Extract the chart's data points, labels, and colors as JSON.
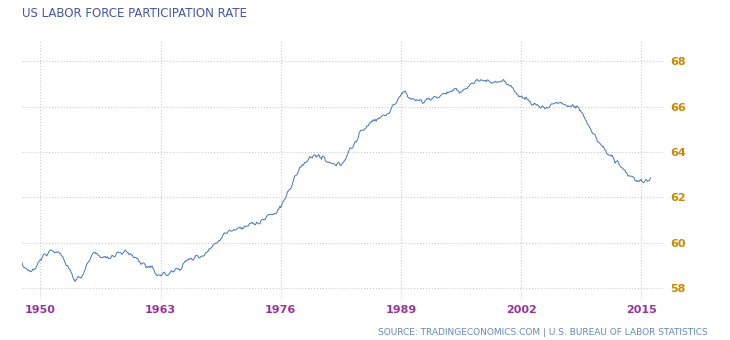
{
  "title": "US LABOR FORCE PARTICIPATION RATE",
  "title_color": "#4455aa",
  "title_fontsize": 8.5,
  "source_text": "SOURCE: TRADINGECONOMICS.COM | U.S. BUREAU OF LABOR STATISTICS",
  "source_color": "#6688bb",
  "source_fontsize": 6.5,
  "line_color": "#4477bb",
  "background_color": "#ffffff",
  "grid_color": "#cccccc",
  "xlim_start": 1948.0,
  "xlim_end": 2017.5,
  "ylim_bottom": 57.5,
  "ylim_top": 68.9,
  "yticks": [
    58,
    60,
    62,
    64,
    66,
    68
  ],
  "ytick_color": "#cc8800",
  "xtick_color": "#993399",
  "xtick_labels": [
    "1950",
    "1963",
    "1976",
    "1989",
    "2002",
    "2015"
  ],
  "xtick_positions": [
    1950,
    1963,
    1976,
    1989,
    2002,
    2015
  ],
  "key_years": [
    1948,
    1950,
    1951,
    1953,
    1954,
    1956,
    1957,
    1958,
    1960,
    1962,
    1963,
    1965,
    1966,
    1968,
    1970,
    1973,
    1975,
    1976,
    1978,
    1979,
    1980,
    1982,
    1984,
    1986,
    1988,
    1989,
    1990,
    1992,
    1994,
    1996,
    1997,
    1999,
    2000,
    2001,
    2003,
    2004,
    2005,
    2006,
    2007,
    2008,
    2009,
    2010,
    2011,
    2012,
    2013,
    2014,
    2015,
    2016
  ],
  "key_values": [
    59.1,
    59.2,
    59.7,
    58.9,
    58.4,
    59.5,
    59.3,
    59.5,
    59.4,
    58.8,
    58.6,
    58.9,
    59.2,
    59.6,
    60.4,
    60.8,
    61.2,
    61.6,
    63.2,
    63.7,
    63.8,
    63.4,
    64.4,
    65.4,
    65.9,
    66.5,
    66.4,
    66.3,
    66.6,
    66.8,
    67.1,
    67.1,
    67.1,
    66.8,
    66.2,
    66.0,
    66.0,
    66.2,
    66.0,
    66.0,
    65.4,
    64.7,
    64.1,
    63.7,
    63.2,
    62.9,
    62.7,
    62.8
  ]
}
